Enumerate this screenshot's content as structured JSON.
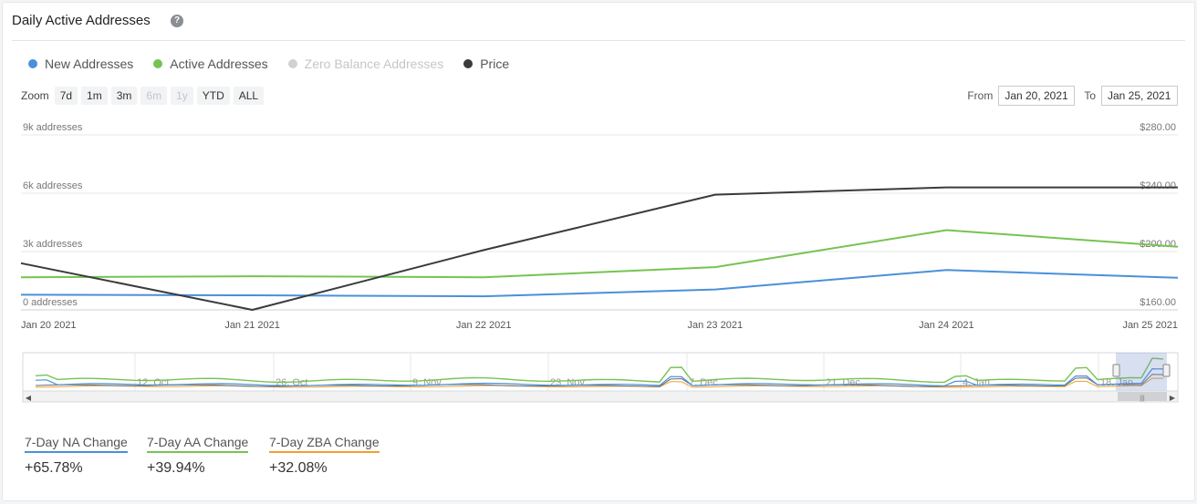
{
  "title": "Daily Active Addresses",
  "icons": {
    "help": "question-circle-icon",
    "help_glyph": "?"
  },
  "legend": [
    {
      "label": "New Addresses",
      "color": "#4a90d9",
      "enabled": true
    },
    {
      "label": "Active Addresses",
      "color": "#76c352",
      "enabled": true
    },
    {
      "label": "Zero Balance Addresses",
      "color": "#cfd1d4",
      "enabled": false
    },
    {
      "label": "Price",
      "color": "#3a3b3d",
      "enabled": true
    }
  ],
  "zoom": {
    "label": "Zoom",
    "buttons": [
      {
        "label": "7d",
        "enabled": true
      },
      {
        "label": "1m",
        "enabled": true
      },
      {
        "label": "3m",
        "enabled": true
      },
      {
        "label": "6m",
        "enabled": false
      },
      {
        "label": "1y",
        "enabled": false
      },
      {
        "label": "YTD",
        "enabled": true
      },
      {
        "label": "ALL",
        "enabled": true
      }
    ]
  },
  "range": {
    "from_label": "From",
    "from_value": "Jan 20, 2021",
    "to_label": "To",
    "to_value": "Jan 25, 2021"
  },
  "chart_data": {
    "type": "line",
    "x": [
      "Jan 20 2021",
      "Jan 21 2021",
      "Jan 22 2021",
      "Jan 23 2021",
      "Jan 24 2021",
      "Jan 25 2021"
    ],
    "y_left": {
      "ticks": [
        "0 addresses",
        "3k addresses",
        "6k addresses",
        "9k addresses"
      ],
      "tick_values": [
        0,
        3000,
        6000,
        9000
      ],
      "range": [
        0,
        9000
      ]
    },
    "y_right": {
      "ticks": [
        "$160.00",
        "$200.00",
        "$240.00",
        "$280.00"
      ],
      "tick_values": [
        160,
        200,
        240,
        280
      ],
      "range": [
        160,
        280
      ]
    },
    "grid": true,
    "series": [
      {
        "name": "New Addresses",
        "axis": "left",
        "color": "#4a90d9",
        "values": [
          780,
          750,
          700,
          1050,
          2050,
          1650
        ]
      },
      {
        "name": "Active Addresses",
        "axis": "left",
        "color": "#76c352",
        "values": [
          1680,
          1730,
          1680,
          2200,
          4100,
          3250
        ]
      },
      {
        "name": "Price",
        "axis": "right",
        "color": "#3a3b3d",
        "values": [
          192,
          160,
          201,
          239,
          244,
          244
        ]
      }
    ],
    "navigator": {
      "ticks": [
        "12. Oct",
        "26. Oct",
        "9. Nov",
        "23. Nov",
        "7. Dec",
        "21. Dec",
        "4. Jan",
        "18. Jan"
      ]
    }
  },
  "stats": [
    {
      "label": "7-Day NA Change",
      "value": "+65.78%",
      "color": "#4a90d9"
    },
    {
      "label": "7-Day AA Change",
      "value": "+39.94%",
      "color": "#76c352"
    },
    {
      "label": "7-Day ZBA Change",
      "value": "+32.08%",
      "color": "#f0a030"
    }
  ]
}
